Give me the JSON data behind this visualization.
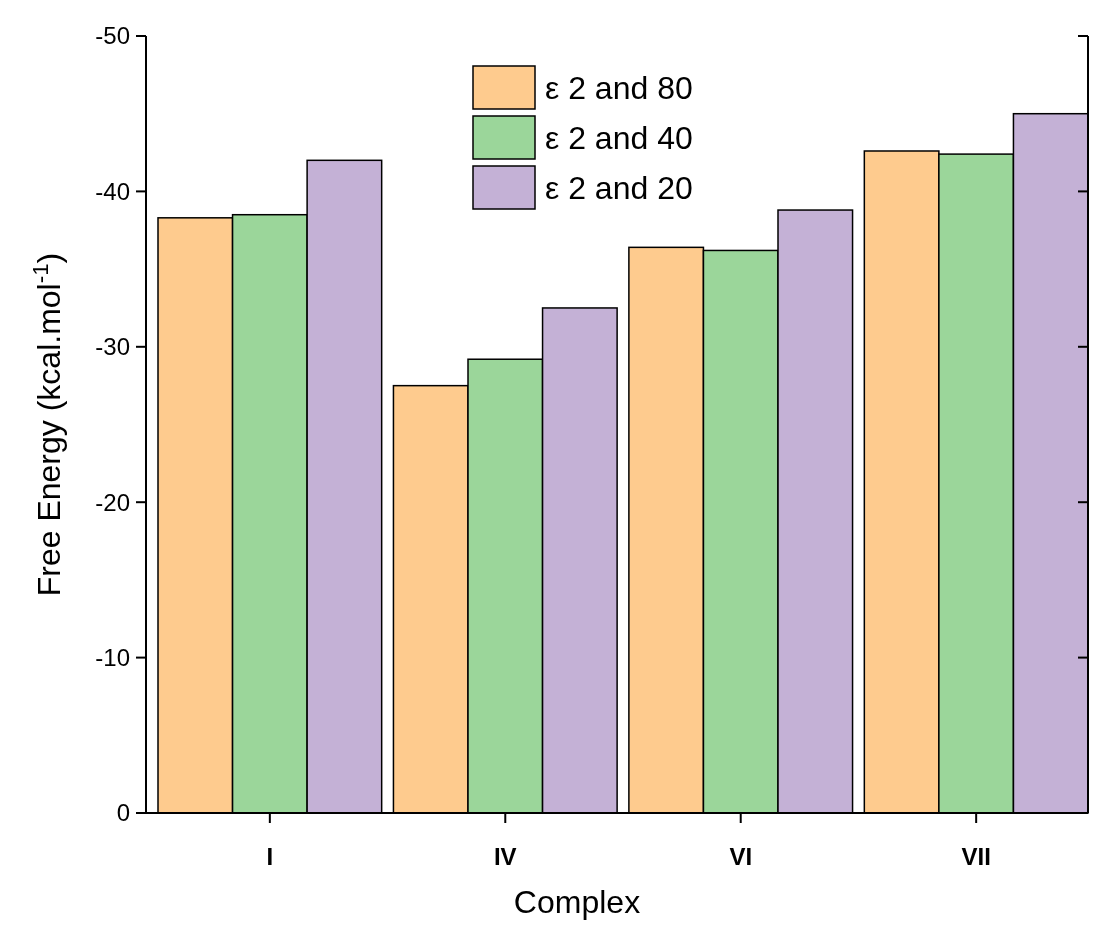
{
  "chart_data": {
    "type": "bar",
    "xlabel": "Complex",
    "ylabel": "Free Energy (kcal.mol$^{-1}$)",
    "categories": [
      "I",
      "IV",
      "VI",
      "VII"
    ],
    "series": [
      {
        "name": "ε 2 and 80",
        "color": "#fecb8e",
        "values": [
          -38.3,
          -27.5,
          -36.4,
          -42.6
        ]
      },
      {
        "name": "ε 2 and 40",
        "color": "#9bd69a",
        "values": [
          -38.5,
          -29.2,
          -36.2,
          -42.4
        ]
      },
      {
        "name": "ε 2 and 20",
        "color": "#c4b1d6",
        "values": [
          -42.0,
          -32.5,
          -38.8,
          -45.0
        ]
      }
    ],
    "ylim": [
      0,
      -50
    ],
    "yticks": [
      0,
      -10,
      -20,
      -30,
      -40,
      -50
    ],
    "grid": false,
    "legend": "top"
  }
}
